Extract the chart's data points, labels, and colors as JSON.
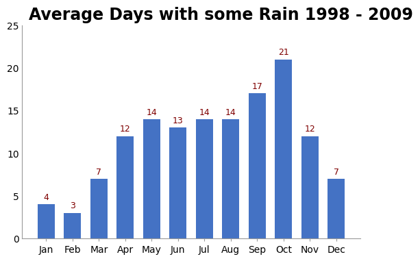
{
  "title": "Average Days with some Rain 1998 - 2009",
  "categories": [
    "Jan",
    "Feb",
    "Mar",
    "Apr",
    "May",
    "Jun",
    "Jul",
    "Aug",
    "Sep",
    "Oct",
    "Nov",
    "Dec"
  ],
  "values": [
    4,
    3,
    7,
    12,
    14,
    13,
    14,
    14,
    17,
    21,
    12,
    7
  ],
  "bar_color": "#4472C4",
  "label_color": "#7F0000",
  "ylim": [
    0,
    25
  ],
  "yticks": [
    0,
    5,
    10,
    15,
    20,
    25
  ],
  "title_fontsize": 17,
  "tick_fontsize": 10,
  "label_fontsize": 9,
  "background_color": "#FFFFFF"
}
